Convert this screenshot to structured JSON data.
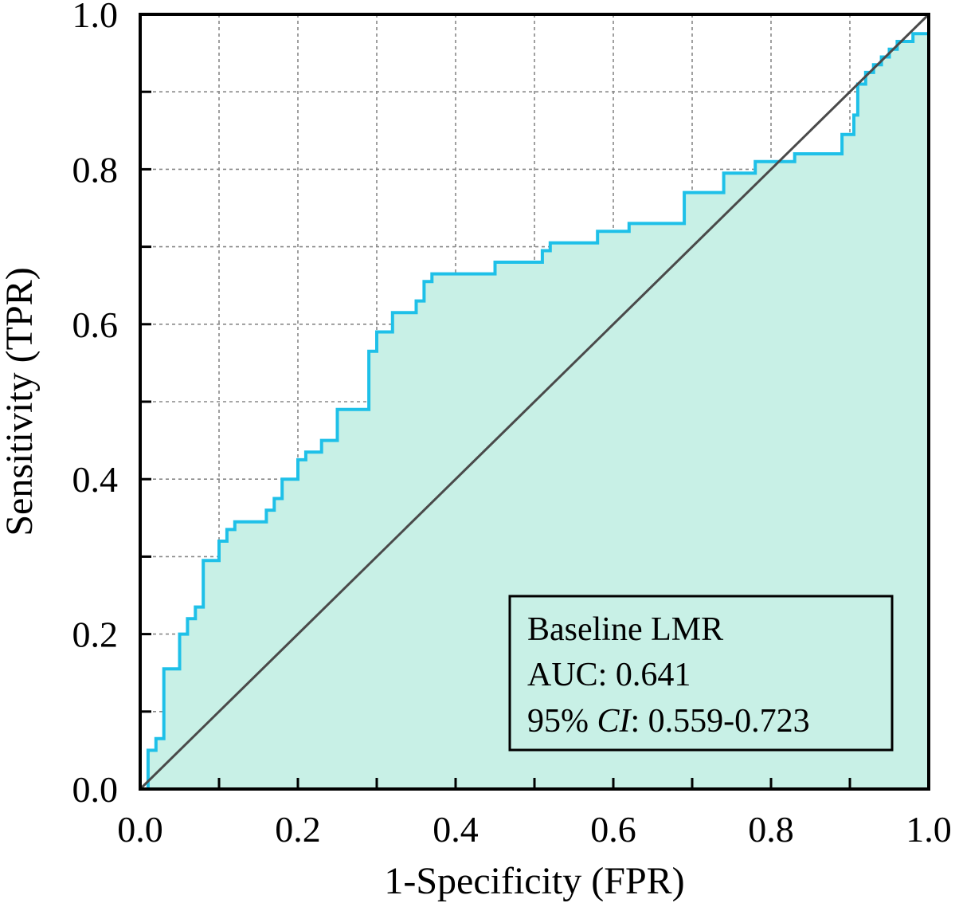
{
  "colors": {
    "roc_line": "#1EC0E8",
    "roc_fill": "#C8F0E6",
    "diagonal": "#4A4A4A",
    "grid": "#888888",
    "frame": "#000000"
  },
  "legend": {
    "line1": "Baseline LMR",
    "line2": "AUC: 0.641",
    "line3_prefix": "95% ",
    "line3_italic": "CI",
    "line3_suffix": ": 0.559-0.723",
    "placement": "bottom-right"
  },
  "chart_data": {
    "type": "line",
    "title": "",
    "xlabel": "1-Specificity (FPR)",
    "ylabel": "Sensitivity (TPR)",
    "xlim": [
      0,
      1
    ],
    "ylim": [
      0,
      1
    ],
    "xticks": [
      "0.0",
      "0.2",
      "0.4",
      "0.6",
      "0.8",
      "1.0"
    ],
    "yticks": [
      "0.0",
      "0.2",
      "0.4",
      "0.6",
      "0.8",
      "1.0"
    ],
    "grid": true,
    "grid_style": "dotted",
    "series": [
      {
        "name": "Baseline LMR",
        "style": "step",
        "area_filled": true,
        "x": [
          0.0,
          0.01,
          0.01,
          0.02,
          0.02,
          0.03,
          0.03,
          0.05,
          0.05,
          0.06,
          0.06,
          0.07,
          0.07,
          0.08,
          0.08,
          0.1,
          0.1,
          0.11,
          0.11,
          0.12,
          0.12,
          0.16,
          0.16,
          0.17,
          0.17,
          0.18,
          0.18,
          0.2,
          0.2,
          0.21,
          0.21,
          0.23,
          0.23,
          0.25,
          0.25,
          0.29,
          0.29,
          0.3,
          0.3,
          0.32,
          0.32,
          0.35,
          0.35,
          0.36,
          0.36,
          0.37,
          0.37,
          0.45,
          0.45,
          0.51,
          0.51,
          0.52,
          0.52,
          0.58,
          0.58,
          0.62,
          0.62,
          0.69,
          0.69,
          0.74,
          0.74,
          0.78,
          0.78,
          0.83,
          0.83,
          0.89,
          0.89,
          0.905,
          0.905,
          0.91,
          0.91,
          0.92,
          0.92,
          0.93,
          0.93,
          0.94,
          0.94,
          0.95,
          0.95,
          0.96,
          0.96,
          0.98,
          0.98,
          1.0,
          1.0
        ],
        "y": [
          0.0,
          0.0,
          0.05,
          0.05,
          0.065,
          0.065,
          0.155,
          0.155,
          0.2,
          0.2,
          0.22,
          0.22,
          0.235,
          0.235,
          0.295,
          0.295,
          0.32,
          0.32,
          0.335,
          0.335,
          0.345,
          0.345,
          0.36,
          0.36,
          0.375,
          0.375,
          0.4,
          0.4,
          0.425,
          0.425,
          0.435,
          0.435,
          0.45,
          0.45,
          0.49,
          0.49,
          0.565,
          0.565,
          0.59,
          0.59,
          0.615,
          0.615,
          0.63,
          0.63,
          0.655,
          0.655,
          0.665,
          0.665,
          0.68,
          0.68,
          0.695,
          0.695,
          0.705,
          0.705,
          0.72,
          0.72,
          0.73,
          0.73,
          0.77,
          0.77,
          0.795,
          0.795,
          0.81,
          0.81,
          0.82,
          0.82,
          0.845,
          0.845,
          0.87,
          0.87,
          0.91,
          0.91,
          0.925,
          0.925,
          0.935,
          0.935,
          0.945,
          0.945,
          0.955,
          0.955,
          0.965,
          0.965,
          0.975,
          0.975,
          0.97
        ]
      },
      {
        "name": "",
        "style": "diagonal",
        "x": [
          0,
          1
        ],
        "y": [
          0,
          1
        ]
      }
    ]
  }
}
